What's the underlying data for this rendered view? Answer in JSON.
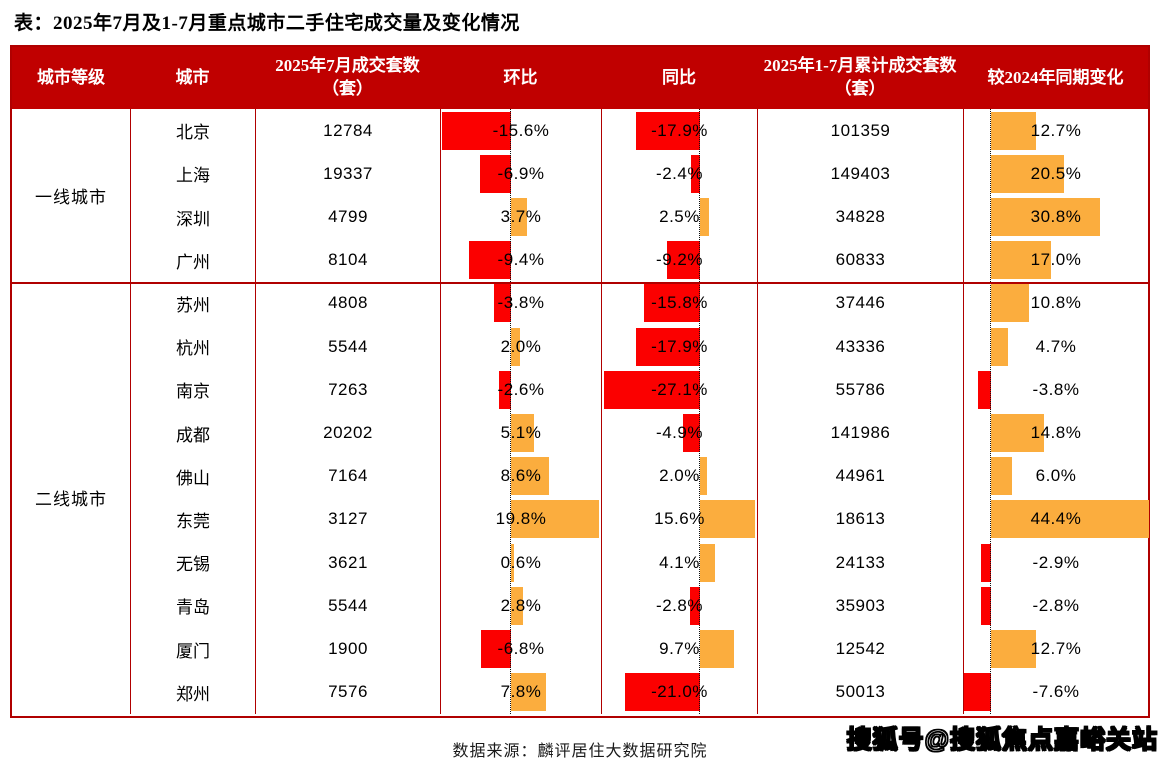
{
  "page_title": "表：2025年7月及1-7月重点城市二手住宅成交量及变化情况",
  "source_note": "数据来源：麟评居住大数据研究院",
  "watermark": "搜狐号@搜狐焦点嘉峪关站",
  "colors": {
    "header_bg": "#C00000",
    "table_border": "#B00000",
    "negative_bar": "#FB0000",
    "positive_bar": "#FBAD3E",
    "text": "#000000"
  },
  "chart_data": {
    "type": "table",
    "title": "表：2025年7月及1-7月重点城市二手住宅成交量及变化情况",
    "legend_note": "单元格内数据条：红色=负值(向左)，橙色=正值(向右)，虚线为零轴",
    "columns": [
      "城市等级",
      "城市",
      "2025年7月成交套数（套）",
      "环比",
      "同比",
      "2025年1-7月累计成交套数（套）",
      "较2024年同期变化"
    ],
    "sections": [
      {
        "tier": "一线城市",
        "rows": [
          {
            "city": "北京",
            "jul": 12784,
            "mom": -15.6,
            "yoy": -17.9,
            "cum": 101359,
            "chg": 12.7
          },
          {
            "city": "上海",
            "jul": 19337,
            "mom": -6.9,
            "yoy": -2.4,
            "cum": 149403,
            "chg": 20.5
          },
          {
            "city": "深圳",
            "jul": 4799,
            "mom": 3.7,
            "yoy": 2.5,
            "cum": 34828,
            "chg": 30.8
          },
          {
            "city": "广州",
            "jul": 8104,
            "mom": -9.4,
            "yoy": -9.2,
            "cum": 60833,
            "chg": 17.0
          }
        ]
      },
      {
        "tier": "二线城市",
        "rows": [
          {
            "city": "苏州",
            "jul": 4808,
            "mom": -3.8,
            "yoy": -15.8,
            "cum": 37446,
            "chg": 10.8
          },
          {
            "city": "杭州",
            "jul": 5544,
            "mom": 2.0,
            "yoy": -17.9,
            "cum": 43336,
            "chg": 4.7
          },
          {
            "city": "南京",
            "jul": 7263,
            "mom": -2.6,
            "yoy": -27.1,
            "cum": 55786,
            "chg": -3.8
          },
          {
            "city": "成都",
            "jul": 20202,
            "mom": 5.1,
            "yoy": -4.9,
            "cum": 141986,
            "chg": 14.8
          },
          {
            "city": "佛山",
            "jul": 7164,
            "mom": 8.6,
            "yoy": 2.0,
            "cum": 44961,
            "chg": 6.0
          },
          {
            "city": "东莞",
            "jul": 3127,
            "mom": 19.8,
            "yoy": 15.6,
            "cum": 18613,
            "chg": 44.4
          },
          {
            "city": "无锡",
            "jul": 3621,
            "mom": 0.6,
            "yoy": 4.1,
            "cum": 24133,
            "chg": -2.9
          },
          {
            "city": "青岛",
            "jul": 5544,
            "mom": 2.8,
            "yoy": -2.8,
            "cum": 35903,
            "chg": -2.8
          },
          {
            "city": "厦门",
            "jul": 1900,
            "mom": -6.8,
            "yoy": 9.7,
            "cum": 12542,
            "chg": 12.7
          },
          {
            "city": "郑州",
            "jul": 7576,
            "mom": 7.8,
            "yoy": -21.0,
            "cum": 50013,
            "chg": -7.6
          }
        ]
      }
    ]
  }
}
